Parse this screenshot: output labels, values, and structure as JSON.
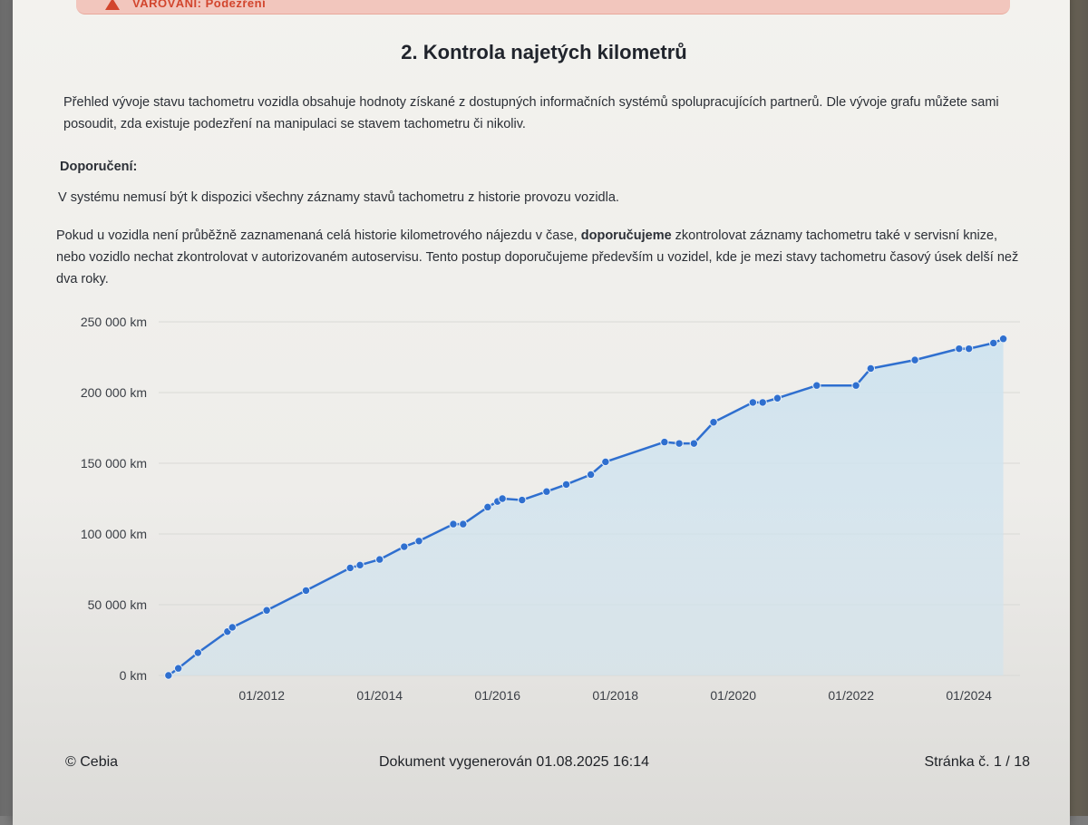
{
  "warning": {
    "text": "VAROVÁNÍ: Podezření"
  },
  "heading": "2. Kontrola najetých kilometrů",
  "intro": "Přehled vývoje stavu tachometru vozidla obsahuje hodnoty získané z dostupných informačních systémů spolupracujících partnerů. Dle vývoje grafu můžete sami posoudit, zda existuje podezření na manipulaci se stavem tachometru či nikoliv.",
  "recommendation_heading": "Doporučení:",
  "recommendation_1": "V systému nemusí být k dispozici všechny záznamy stavů tachometru z historie provozu vozidla.",
  "recommendation_2": {
    "before": "Pokud u vozidla není průběžně zaznamenaná celá historie kilometrového nájezdu v čase, ",
    "bold": "doporučujeme",
    "after": " zkontrolovat záznamy tachometru také v servisní knize, nebo vozidlo nechat zkontrolovat v autorizovaném autoservisu. Tento postup doporučujeme především u vozidel, kde je mezi stavy tachometru časový úsek delší než dva roky."
  },
  "chart_data": {
    "type": "area",
    "title": "",
    "xlabel": "",
    "ylabel": "",
    "ylim": [
      0,
      250000
    ],
    "yticks": [
      {
        "value": 0,
        "label": "0 km"
      },
      {
        "value": 50000,
        "label": "50 000 km"
      },
      {
        "value": 100000,
        "label": "100 000 km"
      },
      {
        "value": 150000,
        "label": "150 000 km"
      },
      {
        "value": 200000,
        "label": "200 000 km"
      },
      {
        "value": 250000,
        "label": "250 000 km"
      }
    ],
    "xlim": [
      "2010-04",
      "2024-09"
    ],
    "xticks": [
      {
        "value": "2012-01",
        "label": "01/2012"
      },
      {
        "value": "2014-01",
        "label": "01/2014"
      },
      {
        "value": "2016-01",
        "label": "01/2016"
      },
      {
        "value": "2018-01",
        "label": "01/2018"
      },
      {
        "value": "2020-01",
        "label": "01/2020"
      },
      {
        "value": "2022-01",
        "label": "01/2022"
      },
      {
        "value": "2024-01",
        "label": "01/2024"
      }
    ],
    "grid": true,
    "line_color": "#2f6fcf",
    "fill_color": "#cfe3ef",
    "series": [
      {
        "points": [
          [
            "2010-06",
            0
          ],
          [
            "2010-08",
            5000
          ],
          [
            "2010-12",
            16000
          ],
          [
            "2011-06",
            31000
          ],
          [
            "2011-07",
            34000
          ],
          [
            "2012-02",
            46000
          ],
          [
            "2012-10",
            60000
          ],
          [
            "2013-07",
            76000
          ],
          [
            "2013-09",
            78000
          ],
          [
            "2014-01",
            82000
          ],
          [
            "2014-06",
            91000
          ],
          [
            "2014-09",
            95000
          ],
          [
            "2015-04",
            107000
          ],
          [
            "2015-06",
            107000
          ],
          [
            "2015-11",
            119000
          ],
          [
            "2016-01",
            123000
          ],
          [
            "2016-02",
            125000
          ],
          [
            "2016-06",
            124000
          ],
          [
            "2016-11",
            130000
          ],
          [
            "2017-03",
            135000
          ],
          [
            "2017-08",
            142000
          ],
          [
            "2017-11",
            151000
          ],
          [
            "2018-11",
            165000
          ],
          [
            "2019-02",
            164000
          ],
          [
            "2019-05",
            164000
          ],
          [
            "2019-09",
            179000
          ],
          [
            "2020-05",
            193000
          ],
          [
            "2020-07",
            193000
          ],
          [
            "2020-10",
            196000
          ],
          [
            "2021-06",
            205000
          ],
          [
            "2022-02",
            205000
          ],
          [
            "2022-05",
            217000
          ],
          [
            "2023-02",
            223000
          ],
          [
            "2023-11",
            231000
          ],
          [
            "2024-01",
            231000
          ],
          [
            "2024-06",
            235000
          ],
          [
            "2024-08",
            238000
          ]
        ]
      }
    ]
  },
  "footer": {
    "copyright": "© Cebia",
    "generated": "Dokument vygenerován 01.08.2025 16:14",
    "page": "Stránka č. 1 / 18"
  }
}
